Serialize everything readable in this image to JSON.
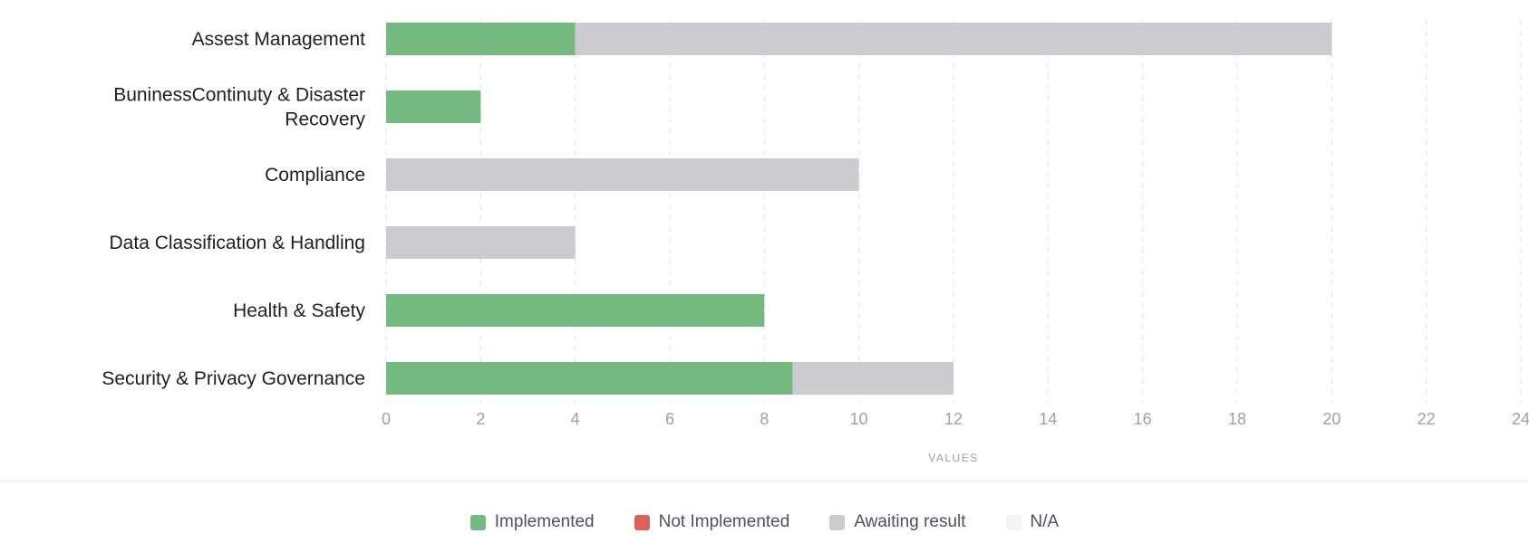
{
  "chart_data": {
    "type": "bar",
    "orientation": "horizontal",
    "stacked": true,
    "categories": [
      "Assest Management",
      "BuninessContinuty & Disaster Recovery",
      "Compliance",
      "Data Classification & Handling",
      "Health & Safety",
      "Security & Privacy Governance"
    ],
    "category_lines": [
      [
        "Assest Management"
      ],
      [
        "BuninessContinuty & Disaster",
        "Recovery"
      ],
      [
        "Compliance"
      ],
      [
        "Data Classification & Handling"
      ],
      [
        "Health & Safety"
      ],
      [
        "Security & Privacy Governance"
      ]
    ],
    "series": [
      {
        "name": "Implemented",
        "color": "#74b97f",
        "values": [
          4,
          2,
          0,
          0,
          8,
          8.6
        ]
      },
      {
        "name": "Not Implemented",
        "color": "#dc6258",
        "values": [
          0,
          0,
          0,
          0,
          0,
          0
        ]
      },
      {
        "name": "Awaiting result",
        "color": "#cbccd1",
        "values": [
          16,
          0,
          10,
          4,
          0,
          3.4
        ]
      },
      {
        "name": "N/A",
        "color": "#f3f4f6",
        "values": [
          0,
          0,
          0,
          0,
          0,
          0
        ]
      }
    ],
    "xlim": [
      0,
      24
    ],
    "xticks": [
      0,
      2,
      4,
      6,
      8,
      10,
      12,
      14,
      16,
      18,
      20,
      22,
      24
    ],
    "xlabel": "VALUES",
    "grid": "vertical dashed",
    "legend_position": "bottom-center"
  }
}
